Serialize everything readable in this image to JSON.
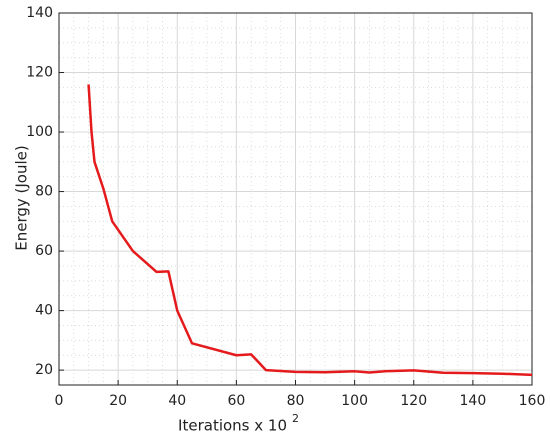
{
  "chart_data": {
    "type": "line",
    "xlabel": "Iterations x 10",
    "xlabel_superscript": "2",
    "ylabel": "Energy (Joule)",
    "x": [
      10,
      11,
      12,
      15,
      18,
      25,
      33,
      37,
      40,
      45,
      60,
      65,
      70,
      80,
      90,
      100,
      105,
      110,
      120,
      130,
      140,
      150,
      160
    ],
    "series": [
      {
        "color": "#e41a1c",
        "values": [
          116,
          100,
          90,
          81,
          70,
          60,
          53,
          53.2,
          40,
          29,
          25,
          25.3,
          20,
          19.4,
          19.3,
          19.6,
          19.2,
          19.6,
          19.9,
          19.1,
          19,
          18.8,
          18.4
        ]
      }
    ],
    "xlim": [
      0,
      160
    ],
    "xticks": [
      0,
      20,
      40,
      60,
      80,
      100,
      120,
      140,
      160
    ],
    "ylim": [
      15,
      140
    ],
    "yticks": [
      20,
      40,
      60,
      80,
      100,
      120,
      140
    ],
    "grid": true,
    "minor_grid": true
  }
}
